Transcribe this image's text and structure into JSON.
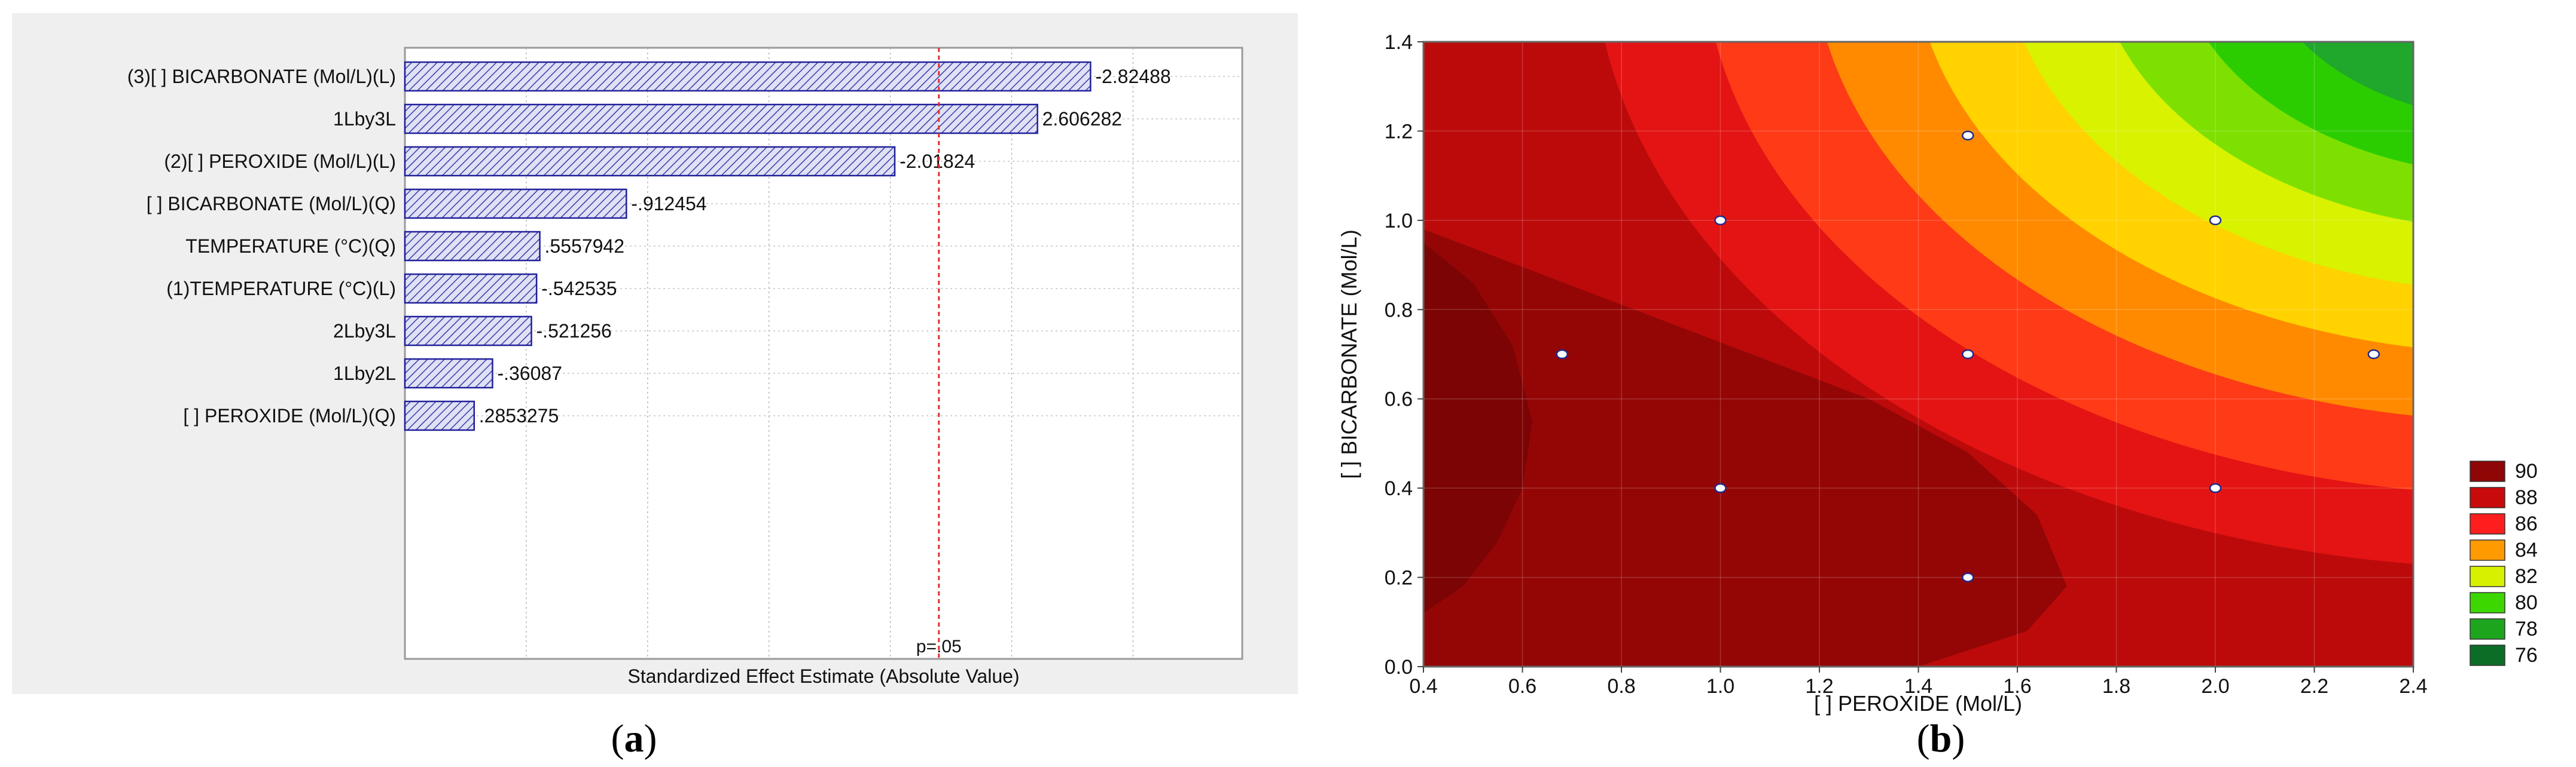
{
  "chart_data": [
    {
      "type": "bar",
      "orientation": "horizontal",
      "title": "",
      "panel_label": {
        "open": "(",
        "letter": "a",
        "close": ")"
      },
      "xlabel": "Standardized Effect Estimate (Absolute Value)",
      "ylabel": "",
      "xlim": [
        0,
        3.45
      ],
      "grid": true,
      "categories": [
        "(3)[ ] BICARBONATE (Mol/L)(L)",
        "1Lby3L",
        "(2)[ ] PEROXIDE (Mol/L)(L)",
        "[ ] BICARBONATE (Mol/L)(Q)",
        "TEMPERATURE (°C)(Q)",
        "(1)TEMPERATURE (°C)(L)",
        "2Lby3L",
        "1Lby2L",
        "[ ] PEROXIDE (Mol/L)(Q)"
      ],
      "values": [
        -2.82488,
        2.606282,
        -2.01824,
        -0.912454,
        0.5557942,
        -0.542535,
        -0.521256,
        -0.36087,
        0.2853275
      ],
      "data_labels": [
        "-2.82488",
        "2.606282",
        "-2.01824",
        "-.912454",
        ".5557942",
        "-.542535",
        "-.521256",
        "-.36087",
        ".2853275"
      ],
      "reference_line": {
        "value": 2.2,
        "label": "p=.05"
      },
      "colors": {
        "bar_fill": "#dfe1f4",
        "bar_stroke": "#20209a",
        "hatch": "#3a3aa8",
        "ref_line": "#e03030"
      }
    },
    {
      "type": "contour",
      "title": "",
      "panel_label": {
        "open": "(",
        "letter": "b",
        "close": ")"
      },
      "xlabel": "[ ] PEROXIDE (Mol/L)",
      "ylabel": "[ ] BICARBONATE (Mol/L)",
      "xlim": [
        0.4,
        2.4
      ],
      "ylim": [
        0.0,
        1.4
      ],
      "x_ticks": [
        "0.4",
        "0.6",
        "0.8",
        "1.0",
        "1.2",
        "1.4",
        "1.6",
        "1.8",
        "2.0",
        "2.2",
        "2.4"
      ],
      "y_ticks": [
        "0.0",
        "0.2",
        "0.4",
        "0.6",
        "0.8",
        "1.0",
        "1.2",
        "1.4"
      ],
      "grid": true,
      "legend": {
        "position": "right",
        "levels": [
          "90",
          "88",
          "86",
          "84",
          "82",
          "80",
          "78",
          "76"
        ],
        "colors": [
          "#8f0606",
          "#c90a0a",
          "#ff1e1e",
          "#ff9a00",
          "#d6f000",
          "#3cd700",
          "#1ea51e",
          "#0c6e26"
        ]
      },
      "region_colors": [
        "#8f0606",
        "#bc0a0a",
        "#e41414",
        "#ff3a16",
        "#ff8a00",
        "#ffd200",
        "#d8f200",
        "#7ee000",
        "#2ccd00",
        "#1fa82c",
        "#0f7a2c",
        "#045e25"
      ],
      "design_points": [
        {
          "x": 0.68,
          "y": 0.7
        },
        {
          "x": 1.0,
          "y": 0.4
        },
        {
          "x": 1.0,
          "y": 1.0
        },
        {
          "x": 1.5,
          "y": 0.2
        },
        {
          "x": 1.5,
          "y": 0.7
        },
        {
          "x": 1.5,
          "y": 1.19
        },
        {
          "x": 2.0,
          "y": 0.4
        },
        {
          "x": 2.0,
          "y": 1.0
        },
        {
          "x": 2.32,
          "y": 0.7
        }
      ]
    }
  ]
}
